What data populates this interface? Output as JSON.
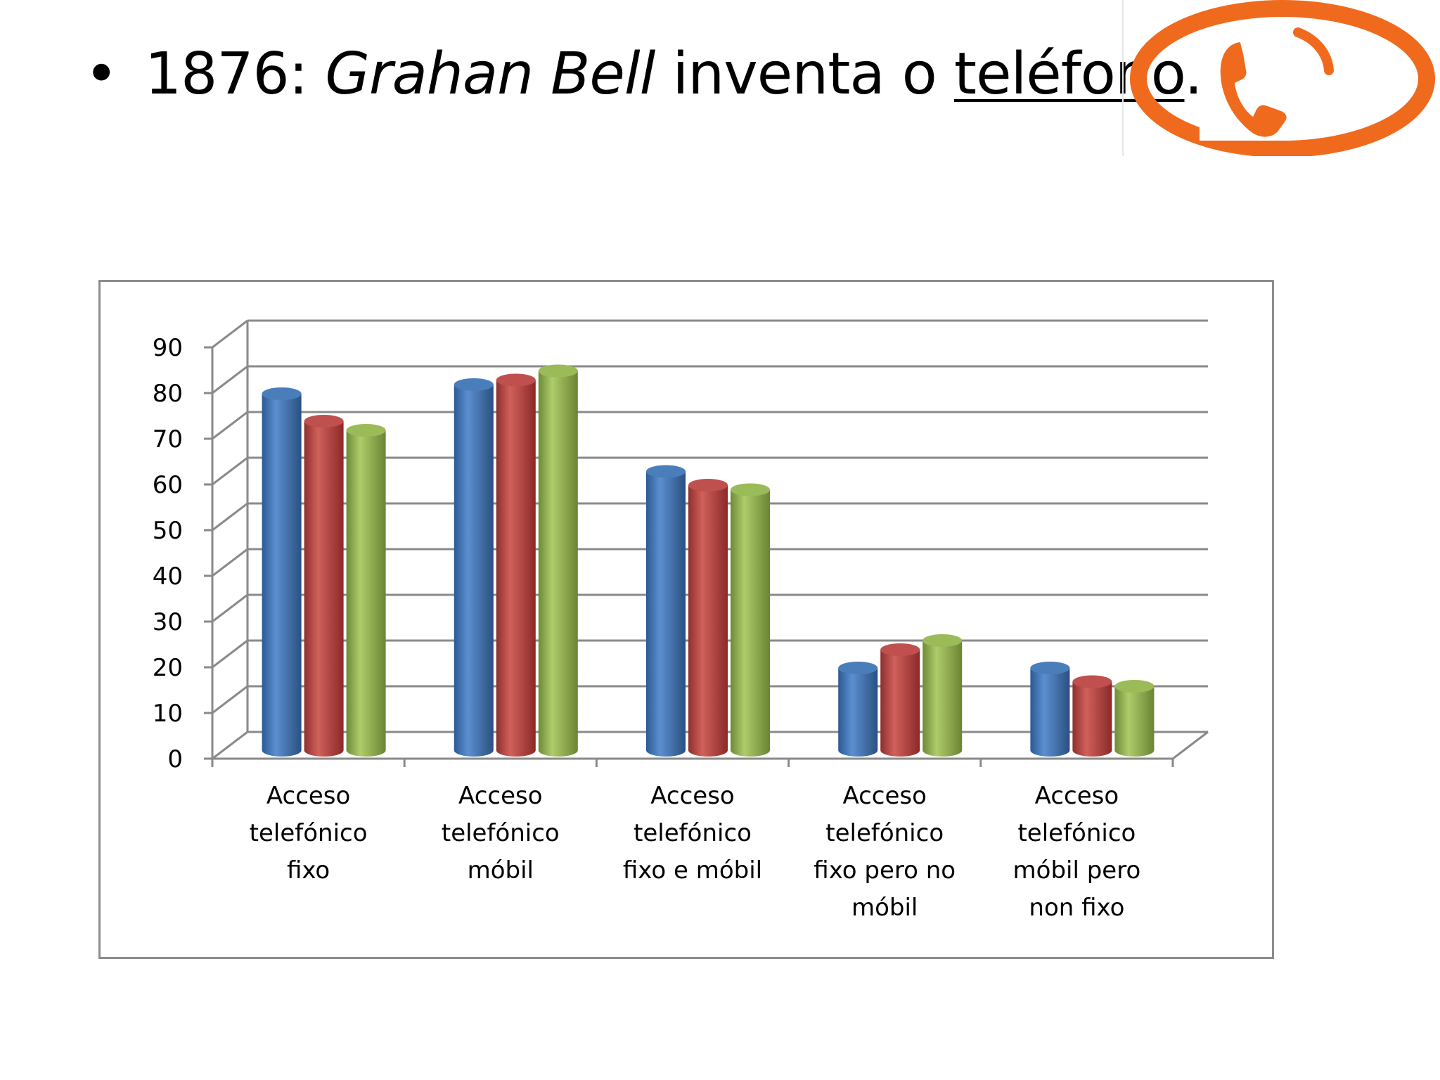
{
  "slide": {
    "bullet": "•",
    "title_year": "1876:",
    "title_name": "Grahan Bell",
    "title_verb": "inventa o",
    "title_object": "teléfono",
    "title_end": "."
  },
  "logo": {
    "icon": "phone-handset-logo-icon",
    "color": "#f06a1e"
  },
  "chart_data": {
    "type": "bar",
    "style": "3d-cylinder",
    "categories": [
      [
        "Acceso",
        "telefónico",
        "fixo"
      ],
      [
        "Acceso",
        "telefónico",
        "móbil"
      ],
      [
        "Acceso",
        "telefónico",
        "fixo e móbil"
      ],
      [
        "Acceso",
        "telefónico",
        "fixo pero no",
        "móbil"
      ],
      [
        "Acceso",
        "telefónico",
        "móbil pero",
        "non fixo"
      ]
    ],
    "series": [
      {
        "values": [
          78,
          80,
          61,
          18,
          18
        ],
        "color": "#4a7ebb"
      },
      {
        "values": [
          72,
          81,
          58,
          22,
          15
        ],
        "color": "#c0504d"
      },
      {
        "values": [
          70,
          83,
          57,
          24,
          14
        ],
        "color": "#9bbb59"
      }
    ],
    "ylim": [
      0,
      90
    ],
    "yticks": [
      0,
      10,
      20,
      30,
      40,
      50,
      60,
      70,
      80,
      90
    ],
    "grid": true,
    "legend": false
  }
}
